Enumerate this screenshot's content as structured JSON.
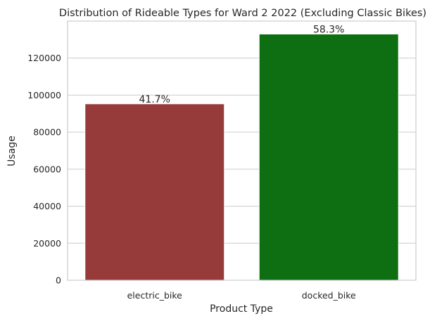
{
  "chart_data": {
    "type": "bar",
    "title": "Distribution of Rideable Types for Ward 2 2022 (Excluding Classic Bikes)",
    "xlabel": "Product Type",
    "ylabel": "Usage",
    "categories": [
      "electric_bike",
      "docked_bike"
    ],
    "values": [
      95300,
      133000
    ],
    "data_labels": [
      "41.7%",
      "58.3%"
    ],
    "colors": [
      "#963a3a",
      "#0e6e12"
    ],
    "ylim": [
      0,
      140000
    ],
    "yticks": [
      0,
      20000,
      40000,
      60000,
      80000,
      100000,
      120000
    ],
    "ytick_labels": [
      "0",
      "20000",
      "40000",
      "60000",
      "80000",
      "100000",
      "120000"
    ],
    "grid": true,
    "grid_axis": "y",
    "legend": "none"
  }
}
